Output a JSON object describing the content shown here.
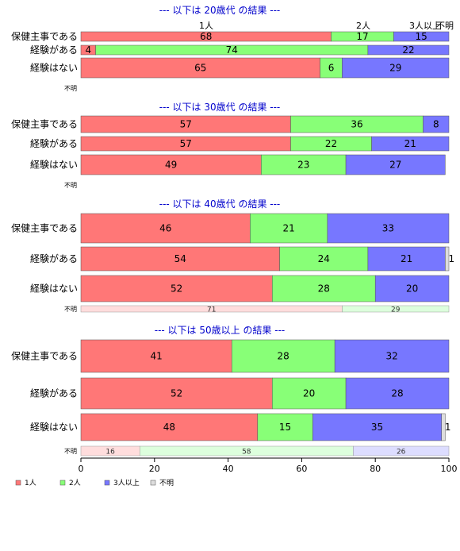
{
  "colors": {
    "one": "#ff7777",
    "two": "#88ff77",
    "three": "#7777ff",
    "unknown": "#dddddd",
    "one_light": "#ffdddd",
    "two_light": "#ddffdd",
    "three_light": "#ddddff",
    "title": "#0000cc"
  },
  "chart_data": {
    "type": "bar",
    "orientation": "horizontal-stacked-percent",
    "xlim": [
      0,
      100
    ],
    "xticks": [
      "0",
      "20",
      "40",
      "60",
      "80",
      "100"
    ],
    "column_headers": [
      "1人",
      "2人",
      "3人以上",
      "不明"
    ],
    "legend": {
      "placement": "bottom-left",
      "entries": [
        "1人",
        "2人",
        "3人以上",
        "不明"
      ]
    },
    "panels": [
      {
        "title": "--- 以下は 20歳代 の結果 ---",
        "unknown_label": "不明",
        "rows": [
          {
            "label": "保健主事である",
            "values": [
              68,
              17,
              15,
              0
            ]
          },
          {
            "label": "経験がある",
            "values": [
              4,
              74,
              22,
              0
            ]
          },
          {
            "label": "経験はない",
            "values": [
              65,
              6,
              29,
              0
            ]
          }
        ],
        "unknown_values": []
      },
      {
        "title": "--- 以下は 30歳代 の結果 ---",
        "unknown_label": "不明",
        "rows": [
          {
            "label": "保健主事である",
            "values": [
              57,
              36,
              8,
              0
            ]
          },
          {
            "label": "経験がある",
            "values": [
              57,
              22,
              21,
              0
            ]
          },
          {
            "label": "経験はない",
            "values": [
              49,
              23,
              27,
              0
            ]
          }
        ],
        "unknown_values": []
      },
      {
        "title": "--- 以下は 40歳代 の結果 ---",
        "unknown_label": "不明",
        "rows": [
          {
            "label": "保健主事である",
            "values": [
              46,
              21,
              33,
              0
            ]
          },
          {
            "label": "経験がある",
            "values": [
              54,
              24,
              21,
              1
            ]
          },
          {
            "label": "経験はない",
            "values": [
              52,
              28,
              20,
              0
            ]
          }
        ],
        "unknown_values": [
          71,
          29,
          0
        ]
      },
      {
        "title": "--- 以下は 50歳以上 の結果 ---",
        "unknown_label": "不明",
        "rows": [
          {
            "label": "保健主事である",
            "values": [
              41,
              28,
              32,
              0
            ]
          },
          {
            "label": "経験がある",
            "values": [
              52,
              20,
              28,
              0
            ]
          },
          {
            "label": "経験はない",
            "values": [
              48,
              15,
              35,
              1
            ]
          }
        ],
        "unknown_values": [
          16,
          58,
          26
        ]
      }
    ]
  }
}
